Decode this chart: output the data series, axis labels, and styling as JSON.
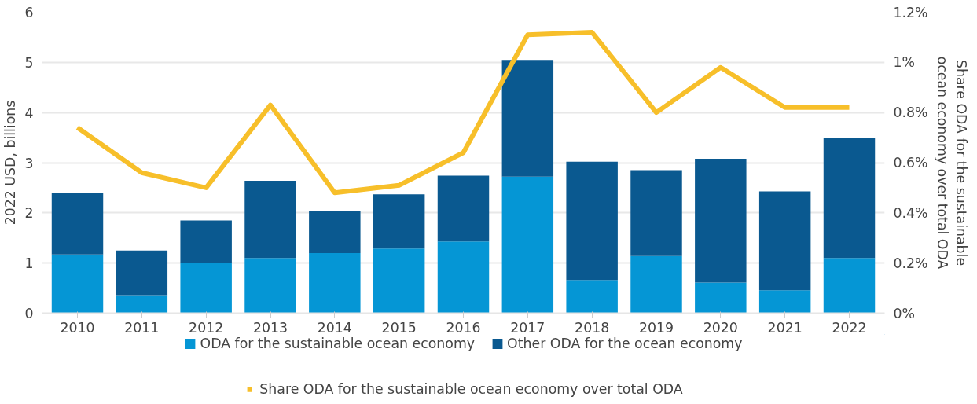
{
  "chart_data": {
    "type": "bar",
    "stacked": true,
    "categories": [
      "2010",
      "2011",
      "2012",
      "2013",
      "2014",
      "2015",
      "2016",
      "2017",
      "2018",
      "2019",
      "2020",
      "2021",
      "2022"
    ],
    "series": [
      {
        "name": "ODA for the sustainable ocean economy",
        "color": "#0596d5",
        "values": [
          1.17,
          0.36,
          1.0,
          1.1,
          1.2,
          1.29,
          1.43,
          2.72,
          0.66,
          1.14,
          0.61,
          0.46,
          1.1
        ]
      },
      {
        "name": "Other ODA for the ocean economy",
        "color": "#0a5990",
        "values": [
          1.23,
          0.89,
          0.85,
          1.54,
          0.84,
          1.08,
          1.31,
          2.33,
          2.36,
          1.71,
          2.47,
          1.97,
          2.4
        ]
      },
      {
        "name": "Share ODA for the sustainable ocean economy over total ODA",
        "color": "#f7bf2a",
        "type": "line",
        "axis": "y2",
        "values": [
          0.74,
          0.56,
          0.5,
          0.83,
          0.48,
          0.51,
          0.64,
          1.11,
          1.12,
          0.8,
          0.98,
          0.82,
          0.82
        ]
      }
    ],
    "ylabel": "2022 USD, billions",
    "y2label": "Share ODA for the sustainable\nocean economy over total ODA",
    "ylim": [
      0,
      6
    ],
    "yticks": [
      0,
      1,
      2,
      3,
      4,
      5,
      6
    ],
    "y2lim": [
      0,
      1.2
    ],
    "y2ticks": [
      {
        "value": 0,
        "label": "0%"
      },
      {
        "value": 0.2,
        "label": "0.2%"
      },
      {
        "value": 0.4,
        "label": "0.4%"
      },
      {
        "value": 0.6,
        "label": "0.6%"
      },
      {
        "value": 0.8,
        "label": "0.8%"
      },
      {
        "value": 1,
        "label": "1%"
      },
      {
        "value": 1.2,
        "label": "1.2%"
      }
    ],
    "grid": "y",
    "legend": "bottom",
    "marker": "none",
    "line_style": "solid"
  }
}
